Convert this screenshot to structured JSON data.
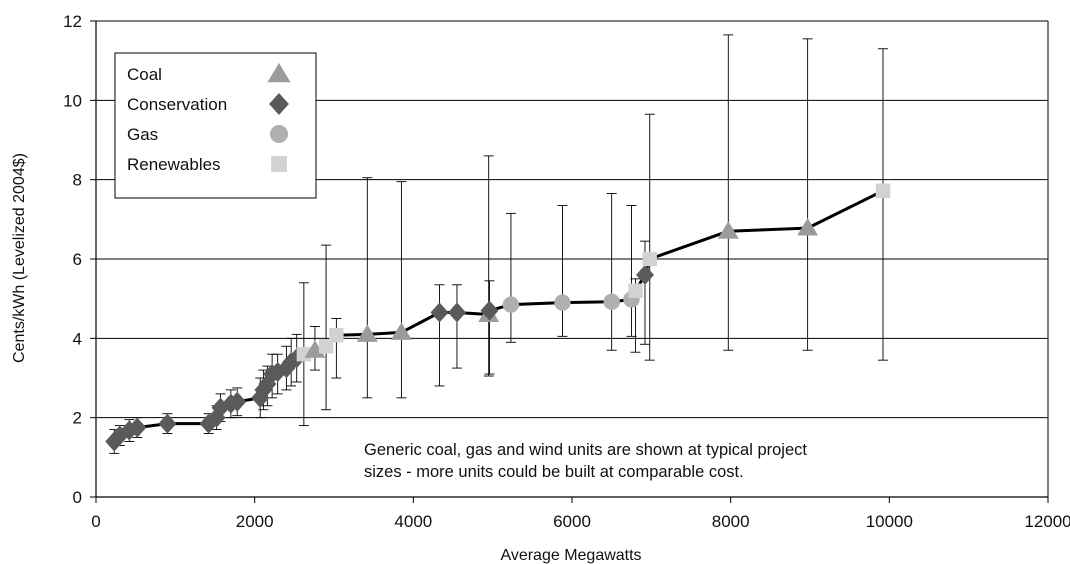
{
  "chart_data": {
    "type": "line",
    "xlabel": "Average Megawatts",
    "ylabel": "Cents/kWh (Levelized 2004$)",
    "xlim": [
      0,
      12000
    ],
    "ylim": [
      0,
      12
    ],
    "xticks": [
      "0",
      "2000",
      "4000",
      "6000",
      "8000",
      "10000",
      "12000"
    ],
    "yticks": [
      "0",
      "2",
      "4",
      "6",
      "8",
      "10",
      "12"
    ],
    "grid": "horizontal",
    "legend_position": "top-left",
    "legend": [
      {
        "name": "Coal",
        "marker": "triangle",
        "color": "#9b9b9b"
      },
      {
        "name": "Conservation",
        "marker": "diamond",
        "color": "#5a5a5a"
      },
      {
        "name": "Gas",
        "marker": "circle",
        "color": "#b0b0b0"
      },
      {
        "name": "Renewables",
        "marker": "square",
        "color": "#d2d2d2"
      }
    ],
    "annotation": [
      "Generic coal, gas and wind units are shown at typical project",
      "sizes - more units could be built at comparable cost."
    ],
    "line_color": "#000000",
    "points": [
      {
        "x": 230,
        "y": 1.4,
        "cat": "Conservation",
        "lo": 1.1,
        "hi": 1.7
      },
      {
        "x": 300,
        "y": 1.55,
        "cat": "Conservation",
        "lo": 1.3,
        "hi": 1.8
      },
      {
        "x": 420,
        "y": 1.68,
        "cat": "Conservation",
        "lo": 1.4,
        "hi": 1.95
      },
      {
        "x": 520,
        "y": 1.75,
        "cat": "Conservation",
        "lo": 1.5,
        "hi": 2.0
      },
      {
        "x": 900,
        "y": 1.85,
        "cat": "Conservation",
        "lo": 1.6,
        "hi": 2.1
      },
      {
        "x": 1420,
        "y": 1.85,
        "cat": "Conservation",
        "lo": 1.6,
        "hi": 2.1
      },
      {
        "x": 1520,
        "y": 2.0,
        "cat": "Conservation",
        "lo": 1.7,
        "hi": 2.3
      },
      {
        "x": 1570,
        "y": 2.25,
        "cat": "Conservation",
        "lo": 1.9,
        "hi": 2.6
      },
      {
        "x": 1700,
        "y": 2.35,
        "cat": "Conservation",
        "lo": 2.0,
        "hi": 2.7
      },
      {
        "x": 1780,
        "y": 2.4,
        "cat": "Conservation",
        "lo": 2.05,
        "hi": 2.75
      },
      {
        "x": 2070,
        "y": 2.5,
        "cat": "Conservation",
        "lo": 2.0,
        "hi": 3.0
      },
      {
        "x": 2110,
        "y": 2.7,
        "cat": "Conservation",
        "lo": 2.2,
        "hi": 3.2
      },
      {
        "x": 2160,
        "y": 2.85,
        "cat": "Conservation",
        "lo": 2.3,
        "hi": 3.3
      },
      {
        "x": 2220,
        "y": 3.1,
        "cat": "Conservation",
        "lo": 2.5,
        "hi": 3.6
      },
      {
        "x": 2290,
        "y": 3.15,
        "cat": "Conservation",
        "lo": 2.6,
        "hi": 3.6
      },
      {
        "x": 2400,
        "y": 3.25,
        "cat": "Conservation",
        "lo": 2.7,
        "hi": 3.8
      },
      {
        "x": 2460,
        "y": 3.4,
        "cat": "Conservation",
        "lo": 2.8,
        "hi": 4.0
      },
      {
        "x": 2530,
        "y": 3.5,
        "cat": "Conservation",
        "lo": 2.9,
        "hi": 4.1
      },
      {
        "x": 2620,
        "y": 3.6,
        "cat": "Renewables",
        "lo": 1.8,
        "hi": 5.4
      },
      {
        "x": 2760,
        "y": 3.7,
        "cat": "Coal",
        "lo": 3.2,
        "hi": 4.3
      },
      {
        "x": 2900,
        "y": 3.8,
        "cat": "Renewables",
        "lo": 2.2,
        "hi": 6.35
      },
      {
        "x": 3030,
        "y": 4.08,
        "cat": "Renewables",
        "lo": 3.0,
        "hi": 4.5
      },
      {
        "x": 3420,
        "y": 4.1,
        "cat": "Coal",
        "lo": 2.5,
        "hi": 8.05
      },
      {
        "x": 3850,
        "y": 4.15,
        "cat": "Coal",
        "lo": 2.5,
        "hi": 7.95
      },
      {
        "x": 4330,
        "y": 4.65,
        "cat": "Conservation",
        "lo": 2.8,
        "hi": 5.35
      },
      {
        "x": 4550,
        "y": 4.65,
        "cat": "Conservation",
        "lo": 3.25,
        "hi": 5.35
      },
      {
        "x": 4950,
        "y": 4.6,
        "cat": "Coal",
        "lo": 3.05,
        "hi": 8.6
      },
      {
        "x": 4960,
        "y": 4.7,
        "cat": "Conservation",
        "lo": 3.1,
        "hi": 5.45
      },
      {
        "x": 5230,
        "y": 4.85,
        "cat": "Gas",
        "lo": 3.9,
        "hi": 7.15
      },
      {
        "x": 5880,
        "y": 4.9,
        "cat": "Gas",
        "lo": 4.05,
        "hi": 7.35
      },
      {
        "x": 6500,
        "y": 4.92,
        "cat": "Gas",
        "lo": 3.7,
        "hi": 7.65
      },
      {
        "x": 6750,
        "y": 4.98,
        "cat": "Gas",
        "lo": 4.05,
        "hi": 7.35
      },
      {
        "x": 6800,
        "y": 5.2,
        "cat": "Renewables",
        "lo": 3.65,
        "hi": 5.5
      },
      {
        "x": 6920,
        "y": 5.6,
        "cat": "Conservation",
        "lo": 3.85,
        "hi": 6.45
      },
      {
        "x": 6980,
        "y": 6.0,
        "cat": "Renewables",
        "lo": 3.45,
        "hi": 9.65
      },
      {
        "x": 7970,
        "y": 6.7,
        "cat": "Coal",
        "lo": 3.7,
        "hi": 11.65
      },
      {
        "x": 8970,
        "y": 6.78,
        "cat": "Coal",
        "lo": 3.7,
        "hi": 11.55
      },
      {
        "x": 9920,
        "y": 7.72,
        "cat": "Renewables",
        "lo": 3.45,
        "hi": 11.3
      }
    ]
  }
}
